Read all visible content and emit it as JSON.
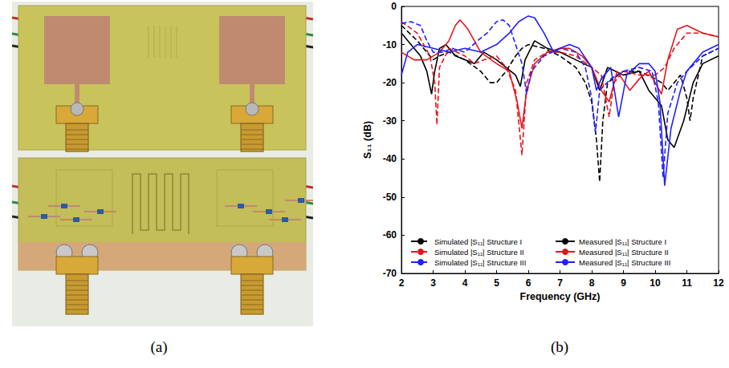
{
  "photo": {
    "caption": "(a)"
  },
  "chart_data": {
    "type": "line",
    "caption": "(b)",
    "xlabel": "Frequency (GHz)",
    "ylabel": "S₁₁ (dB)",
    "xlim": [
      2,
      12
    ],
    "xticks": [
      2,
      3,
      4,
      5,
      6,
      7,
      8,
      9,
      10,
      11,
      12
    ],
    "ylim": [
      -70,
      0
    ],
    "yticks": [
      -70,
      -60,
      -50,
      -40,
      -30,
      -20,
      -10,
      0
    ],
    "grid": false,
    "legend": "lower left",
    "marker": "none",
    "series": [
      {
        "name": "Simulated |S₁₁| Structure I",
        "color": "#000000",
        "line_style": "dashed",
        "x": [
          2,
          2.5,
          2.8,
          3.0,
          3.2,
          3.5,
          4.0,
          4.5,
          4.8,
          5.0,
          5.3,
          5.6,
          5.8,
          6.0,
          6.5,
          7.0,
          7.5,
          7.8,
          8.0,
          8.15,
          8.25,
          8.35,
          8.5,
          9.0,
          9.5,
          10.0,
          10.2,
          10.4,
          10.6,
          10.8,
          11.0,
          11.1,
          11.2,
          11.5,
          12.0
        ],
        "values": [
          -5,
          -9,
          -12,
          -14,
          -13,
          -12,
          -14,
          -17,
          -20,
          -20,
          -17,
          -13,
          -11,
          -10,
          -11,
          -13,
          -16,
          -20,
          -25,
          -35,
          -46,
          -30,
          -20,
          -17,
          -17,
          -19,
          -20,
          -22,
          -20,
          -18,
          -24,
          -30,
          -24,
          -13,
          -11
        ]
      },
      {
        "name": "Measured |S₁₁| Structure I",
        "color": "#000000",
        "line_style": "solid",
        "x": [
          2,
          2.3,
          2.6,
          2.8,
          2.95,
          3.05,
          3.2,
          3.4,
          3.7,
          4.0,
          4.3,
          4.6,
          5.0,
          5.3,
          5.6,
          5.75,
          5.9,
          6.2,
          6.6,
          7.0,
          7.5,
          8.0,
          8.25,
          8.5,
          9.0,
          9.5,
          9.8,
          10.0,
          10.2,
          10.4,
          10.6,
          10.9,
          11.2,
          11.5,
          12.0
        ],
        "values": [
          -7,
          -10,
          -13,
          -17,
          -23,
          -17,
          -11,
          -10,
          -13,
          -14,
          -15,
          -12,
          -14,
          -16,
          -18,
          -21,
          -14,
          -9,
          -11,
          -12,
          -14,
          -16,
          -22,
          -16,
          -18,
          -17,
          -22,
          -24,
          -26,
          -35,
          -37,
          -30,
          -20,
          -15,
          -13
        ]
      },
      {
        "name": "Simulated |S₁₁| Structure II",
        "color": "#e8141c",
        "line_style": "dashed",
        "x": [
          2,
          2.5,
          2.9,
          3.05,
          3.12,
          3.2,
          3.5,
          4.0,
          4.3,
          4.6,
          5.0,
          5.3,
          5.6,
          5.8,
          5.95,
          6.2,
          6.6,
          7.0,
          7.5,
          8.0,
          8.3,
          8.55,
          8.7,
          9.0,
          9.5,
          10.0,
          10.3,
          10.6,
          11.0,
          11.5,
          12.0
        ],
        "values": [
          -4,
          -7,
          -13,
          -20,
          -31,
          -16,
          -11,
          -13,
          -15,
          -14,
          -13,
          -16,
          -22,
          -39,
          -20,
          -14,
          -12,
          -12,
          -13,
          -16,
          -18,
          -29,
          -20,
          -17,
          -18,
          -18,
          -16,
          -11,
          -7,
          -7,
          -8
        ]
      },
      {
        "name": "Measured |S₁₁| Structure II",
        "color": "#e8141c",
        "line_style": "solid",
        "x": [
          2,
          2.4,
          2.8,
          3.2,
          3.5,
          3.7,
          3.85,
          4.1,
          4.5,
          5.0,
          5.4,
          5.65,
          5.8,
          5.95,
          6.2,
          6.6,
          7.0,
          7.3,
          7.7,
          8.0,
          8.3,
          8.55,
          8.8,
          9.2,
          9.5,
          9.8,
          10.0,
          10.2,
          10.4,
          10.7,
          11.0,
          11.5,
          12.0
        ],
        "values": [
          -12,
          -14,
          -14,
          -12,
          -9,
          -5,
          -3.5,
          -6,
          -12,
          -15,
          -17,
          -25,
          -32,
          -22,
          -15,
          -12,
          -11,
          -11,
          -13,
          -16,
          -22,
          -25,
          -17,
          -22,
          -19,
          -17,
          -20,
          -23,
          -14,
          -6,
          -5,
          -7,
          -8
        ]
      },
      {
        "name": "Simulated |S₁₁| Structure III",
        "color": "#2020ff",
        "line_style": "dashed",
        "x": [
          2,
          2.3,
          2.6,
          2.8,
          3.0,
          3.3,
          3.6,
          4.0,
          4.4,
          4.7,
          5.0,
          5.2,
          5.4,
          5.6,
          5.8,
          5.95,
          6.1,
          6.5,
          7.0,
          7.5,
          7.8,
          8.0,
          8.12,
          8.25,
          8.6,
          9.0,
          9.5,
          9.9,
          10.1,
          10.25,
          10.4,
          10.7,
          11.0,
          11.5,
          12.0
        ],
        "values": [
          -4.5,
          -4,
          -5,
          -9,
          -12,
          -12,
          -11,
          -12,
          -9,
          -7,
          -4,
          -3.5,
          -5,
          -10,
          -15,
          -23,
          -17,
          -13,
          -11,
          -12,
          -16,
          -24,
          -33,
          -22,
          -19,
          -17,
          -16,
          -17,
          -25,
          -45,
          -28,
          -20,
          -17,
          -13,
          -11
        ]
      },
      {
        "name": "Measured |S₁₁| Structure III",
        "color": "#2020ff",
        "line_style": "solid",
        "x": [
          2,
          2.2,
          2.5,
          3.0,
          3.5,
          4.0,
          4.5,
          5.0,
          5.4,
          5.7,
          6.0,
          6.2,
          6.5,
          6.8,
          7.0,
          7.3,
          7.6,
          8.0,
          8.15,
          8.3,
          8.6,
          8.85,
          9.1,
          9.5,
          9.8,
          10.0,
          10.15,
          10.3,
          10.5,
          10.8,
          11.0,
          11.5,
          12.0
        ],
        "values": [
          -18,
          -12,
          -10,
          -11,
          -12,
          -11,
          -12,
          -10,
          -7,
          -4,
          -2.5,
          -3,
          -7,
          -12,
          -11,
          -10,
          -11,
          -16,
          -22,
          -19,
          -16,
          -29,
          -18,
          -15,
          -15,
          -17,
          -25,
          -47,
          -32,
          -22,
          -17,
          -12,
          -10
        ]
      }
    ]
  }
}
